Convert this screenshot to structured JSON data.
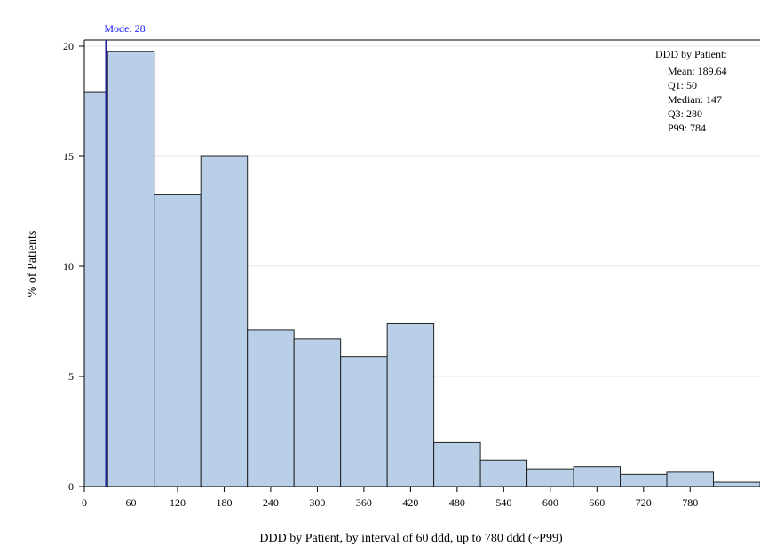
{
  "chart_data": {
    "type": "bar",
    "title": "",
    "xlabel": "DDD by Patient, by interval of 60 ddd, up to 780 ddd (~P99)",
    "ylabel": "% of Patients",
    "bin_width": 30,
    "bins": [
      {
        "start": 0,
        "end": 30,
        "value": 17.9
      },
      {
        "start": 30,
        "end": 90,
        "value": 19.75
      },
      {
        "start": 90,
        "end": 150,
        "value": 13.25
      },
      {
        "start": 150,
        "end": 210,
        "value": 15.0
      },
      {
        "start": 210,
        "end": 270,
        "value": 7.1
      },
      {
        "start": 270,
        "end": 330,
        "value": 6.7
      },
      {
        "start": 330,
        "end": 390,
        "value": 5.9
      },
      {
        "start": 390,
        "end": 450,
        "value": 7.4
      },
      {
        "start": 450,
        "end": 510,
        "value": 2.0
      },
      {
        "start": 510,
        "end": 570,
        "value": 1.2
      },
      {
        "start": 570,
        "end": 630,
        "value": 0.8
      },
      {
        "start": 630,
        "end": 690,
        "value": 0.9
      },
      {
        "start": 690,
        "end": 750,
        "value": 0.55
      },
      {
        "start": 750,
        "end": 810,
        "value": 0.65
      },
      {
        "start": 810,
        "end": 870,
        "value": 0.2
      }
    ],
    "x_ticks": [
      "0",
      "60",
      "120",
      "180",
      "240",
      "300",
      "360",
      "420",
      "480",
      "540",
      "600",
      "660",
      "720",
      "780"
    ],
    "y_ticks": [
      "0",
      "5",
      "10",
      "15",
      "20"
    ],
    "xlim": [
      0,
      870
    ],
    "ylim": [
      0,
      20
    ],
    "grid": "horizontal",
    "mode_line": {
      "value": 28,
      "label": "Mode: 28"
    },
    "stats_box": {
      "title": "DDD by Patient:",
      "lines": [
        "Mean: 189.64",
        "Q1: 50",
        "Median: 147",
        "Q3: 280",
        "P99: 784"
      ],
      "placement": "top-right"
    }
  },
  "colors": {
    "bar_fill": "#b9cfe7",
    "bar_stroke": "#222222",
    "mode_line": "#1f1f9a",
    "mode_label": "#1a1aff",
    "grid": "#e6e6e6"
  }
}
